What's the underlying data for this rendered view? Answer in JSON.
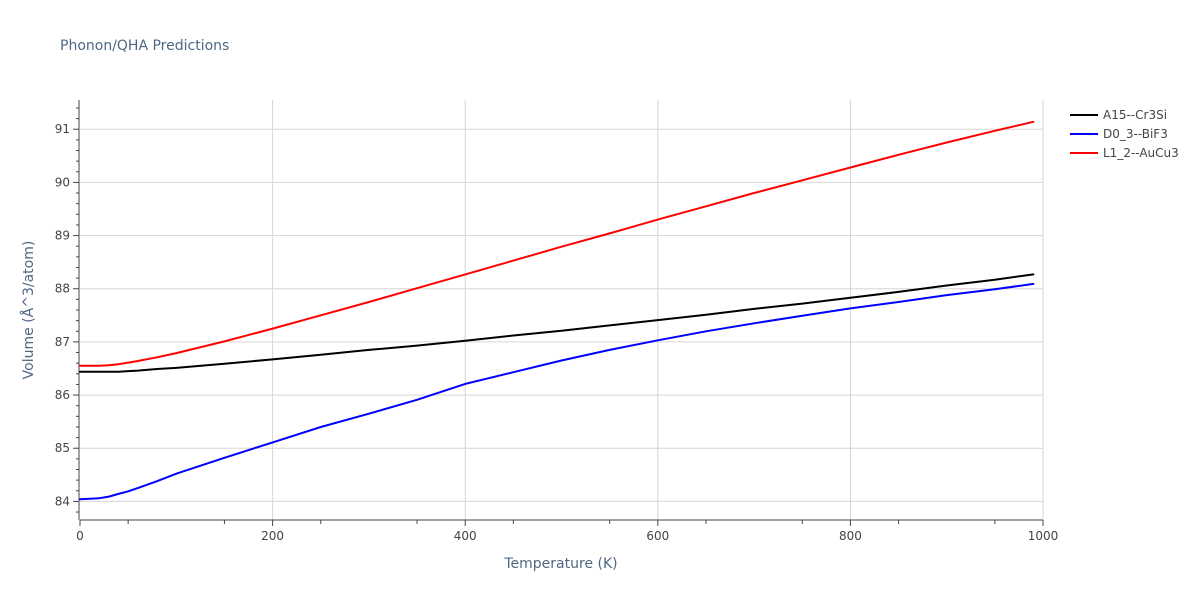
{
  "chart_data": {
    "type": "line",
    "title": "Phonon/QHA Predictions",
    "xlabel": "Temperature (K)",
    "ylabel": "Volume (Å^3/atom)",
    "xlim": [
      0,
      1000
    ],
    "ylim": [
      83.65,
      91.55
    ],
    "x_ticks": [
      0,
      200,
      400,
      600,
      800,
      1000
    ],
    "x_tick_labels": [
      "0",
      "200",
      "400",
      "600",
      "800",
      "1000"
    ],
    "y_ticks": [
      84,
      85,
      86,
      87,
      88,
      89,
      90,
      91
    ],
    "y_tick_labels": [
      "84",
      "85",
      "86",
      "87",
      "88",
      "89",
      "90",
      "91"
    ],
    "grid": true,
    "legend_position": "top-right",
    "series": [
      {
        "name": "A15--Cr3Si",
        "color": "#000000",
        "x": [
          0,
          10,
          20,
          30,
          40,
          50,
          60,
          80,
          100,
          150,
          200,
          250,
          300,
          350,
          400,
          450,
          500,
          550,
          600,
          650,
          700,
          750,
          800,
          850,
          900,
          950,
          990
        ],
        "y": [
          86.44,
          86.44,
          86.44,
          86.44,
          86.44,
          86.45,
          86.46,
          86.49,
          86.51,
          86.59,
          86.67,
          86.76,
          86.85,
          86.93,
          87.02,
          87.12,
          87.21,
          87.31,
          87.41,
          87.51,
          87.62,
          87.72,
          87.83,
          87.94,
          88.06,
          88.17,
          88.27
        ]
      },
      {
        "name": "D0_3--BiF3",
        "color": "#0000ff",
        "x": [
          0,
          10,
          20,
          30,
          40,
          50,
          60,
          80,
          100,
          150,
          200,
          250,
          300,
          350,
          400,
          450,
          500,
          550,
          600,
          650,
          700,
          750,
          800,
          850,
          900,
          950,
          990
        ],
        "y": [
          84.04,
          84.05,
          84.06,
          84.09,
          84.14,
          84.19,
          84.25,
          84.38,
          84.52,
          84.82,
          85.11,
          85.4,
          85.65,
          85.91,
          86.21,
          86.43,
          86.65,
          86.85,
          87.03,
          87.2,
          87.35,
          87.49,
          87.63,
          87.75,
          87.88,
          87.99,
          88.09
        ]
      },
      {
        "name": "L1_2--AuCu3",
        "color": "#ff0000",
        "x": [
          0,
          10,
          20,
          30,
          40,
          50,
          60,
          80,
          100,
          150,
          200,
          250,
          300,
          350,
          400,
          450,
          500,
          550,
          600,
          650,
          700,
          750,
          800,
          850,
          900,
          950,
          990
        ],
        "y": [
          86.55,
          86.55,
          86.55,
          86.56,
          86.58,
          86.61,
          86.64,
          86.71,
          86.79,
          87.01,
          87.25,
          87.5,
          87.75,
          88.01,
          88.27,
          88.53,
          88.79,
          89.04,
          89.3,
          89.55,
          89.8,
          90.04,
          90.28,
          90.52,
          90.75,
          90.97,
          91.14
        ]
      }
    ]
  }
}
